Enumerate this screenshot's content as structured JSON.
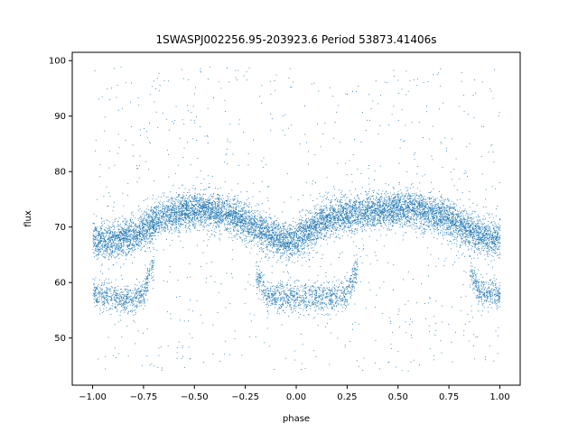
{
  "chart_data": {
    "type": "scatter",
    "title": "1SWASPJ002256.95-203923.6 Period 53873.41406s",
    "xlabel": "phase",
    "ylabel": "flux",
    "xlim": [
      -1.1,
      1.1
    ],
    "ylim": [
      41.5,
      101.5
    ],
    "xticks": [
      -1.0,
      -0.75,
      -0.5,
      -0.25,
      0.0,
      0.25,
      0.5,
      0.75,
      1.0
    ],
    "xtick_labels": [
      "−1.00",
      "−0.75",
      "−0.50",
      "−0.25",
      "0.00",
      "0.25",
      "0.50",
      "0.75",
      "1.00"
    ],
    "yticks": [
      50,
      60,
      70,
      80,
      90,
      100
    ],
    "ytick_labels": [
      "50",
      "60",
      "70",
      "80",
      "90",
      "100"
    ],
    "grid": false,
    "legend": "none",
    "marker_color": "#1f77b4",
    "series": [
      {
        "x": [
          -1.0,
          -0.95,
          -0.9,
          -0.85,
          -0.8,
          -0.75,
          -0.7,
          -0.65,
          -0.6,
          -0.55,
          -0.5,
          -0.45,
          -0.4,
          -0.35,
          -0.3,
          -0.25,
          -0.2,
          -0.15,
          -0.1,
          -0.05,
          0.0,
          0.05,
          0.1,
          0.15,
          0.2,
          0.25,
          0.3,
          0.35,
          0.4,
          0.45,
          0.5,
          0.55,
          0.6,
          0.65,
          0.7,
          0.75,
          0.8,
          0.85,
          0.9,
          0.95,
          1.0
        ],
        "upper_branch": [
          68.0,
          67.5,
          67.5,
          68.0,
          68.5,
          69.5,
          71.0,
          72.0,
          72.5,
          73.0,
          73.2,
          73.0,
          72.8,
          72.5,
          72.0,
          71.2,
          70.0,
          69.0,
          68.0,
          67.5,
          68.0,
          69.0,
          70.5,
          71.5,
          72.0,
          72.3,
          72.5,
          72.8,
          73.0,
          73.2,
          73.3,
          73.3,
          73.0,
          72.5,
          72.0,
          71.5,
          70.5,
          69.5,
          68.5,
          68.0,
          68.0
        ],
        "eclipse_branch": [
          58.0,
          58.0,
          57.5,
          57.0,
          57.0,
          58.5,
          64.0,
          null,
          null,
          null,
          null,
          null,
          null,
          null,
          null,
          null,
          62.0,
          58.0,
          57.5,
          57.5,
          57.5,
          57.5,
          57.5,
          57.5,
          57.5,
          58.0,
          63.0,
          null,
          null,
          null,
          null,
          null,
          null,
          null,
          null,
          null,
          null,
          62.0,
          58.5,
          58.0,
          58.0
        ]
      }
    ]
  }
}
